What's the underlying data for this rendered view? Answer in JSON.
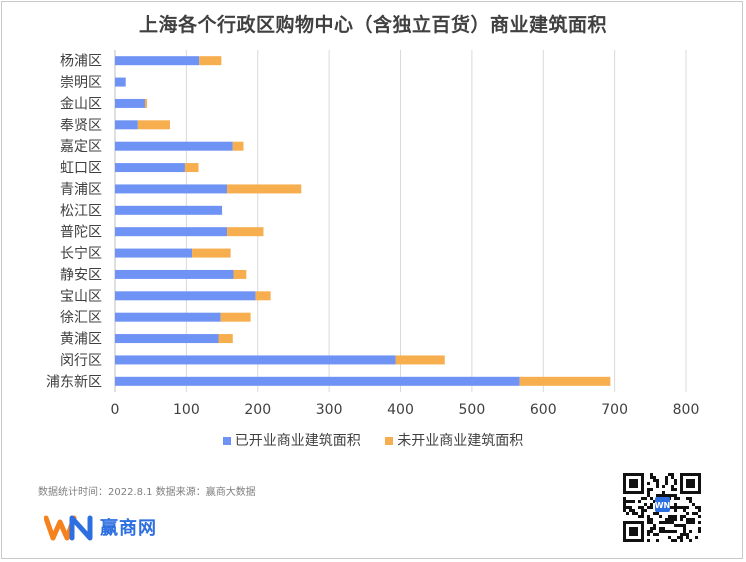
{
  "footnote": "数据统计时间：2022.8.1  数据来源：赢商大数据",
  "brand": {
    "name": "赢商网",
    "logo": "WN",
    "colors": {
      "blue": "#2d6fe0",
      "orange": "#f5821f"
    }
  },
  "qr_icon": "qr-code-icon",
  "chart_data": {
    "type": "bar",
    "orientation": "horizontal",
    "stacked": true,
    "title": "上海各个行政区购物中心（含独立百货）商业建筑面积",
    "categories": [
      "杨浦区",
      "崇明区",
      "金山区",
      "奉贤区",
      "嘉定区",
      "虹口区",
      "青浦区",
      "松江区",
      "普陀区",
      "长宁区",
      "静安区",
      "宝山区",
      "徐汇区",
      "黄浦区",
      "闵行区",
      "浦东新区"
    ],
    "series": [
      {
        "name": "已开业商业建筑面积",
        "color": "#6f93f5",
        "values": [
          118,
          15,
          42,
          32,
          165,
          98,
          157,
          150,
          157,
          108,
          166,
          197,
          148,
          145,
          393,
          567
        ]
      },
      {
        "name": "未开业商业建筑面积",
        "color": "#f7ae4e",
        "values": [
          31,
          0,
          3,
          45,
          15,
          19,
          104,
          0,
          51,
          54,
          18,
          21,
          42,
          20,
          69,
          127
        ]
      }
    ],
    "xlim": [
      0,
      800
    ],
    "xticks": [
      0,
      100,
      200,
      300,
      400,
      500,
      600,
      700,
      800
    ],
    "grid": true,
    "legend_position": "bottom"
  }
}
